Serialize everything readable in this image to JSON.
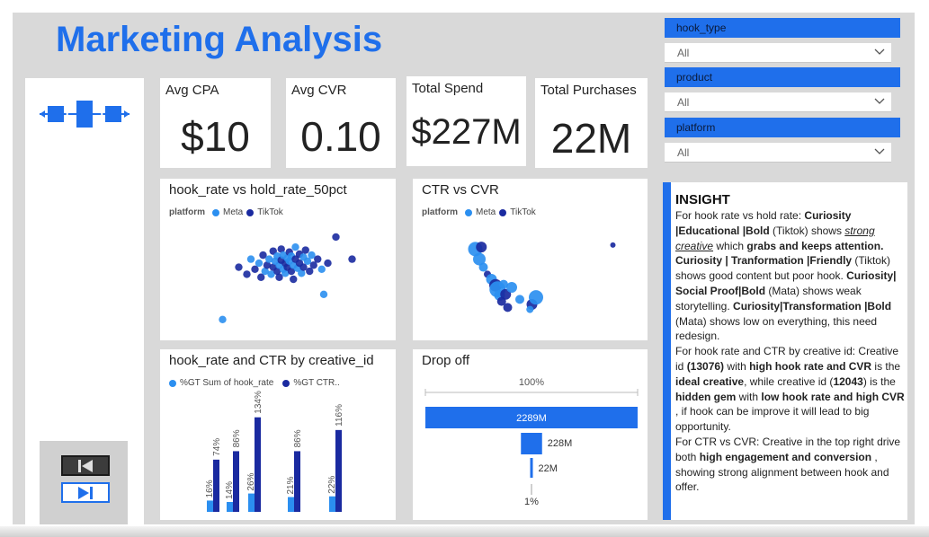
{
  "title": "Marketing Analysis",
  "colors": {
    "accent": "#1f6feb",
    "meta": "#2b8ff0",
    "tiktok": "#1a2aa0"
  },
  "kpis": {
    "avg_cpa": {
      "label": "Avg CPA",
      "value": "$10"
    },
    "avg_cvr": {
      "label": "Avg CVR",
      "value": "0.10"
    },
    "total_spend": {
      "label": "Total Spend",
      "value": "$227M"
    },
    "total_purchases": {
      "label": "Total Purchases",
      "value": "22M"
    }
  },
  "filters": {
    "hook_type": {
      "label": "hook_type",
      "value": "All"
    },
    "product": {
      "label": "product",
      "value": "All"
    },
    "platform": {
      "label": "platform",
      "value": "All"
    }
  },
  "icons": {
    "logo": "network-flow-icon",
    "prev": "skip-back-icon",
    "next": "skip-forward-icon",
    "dropdown": "chevron-down-icon"
  },
  "scatter1": {
    "title": "hook_rate vs hold_rate_50pct",
    "legend_title": "platform",
    "series": [
      "Meta",
      "TikTok"
    ]
  },
  "scatter2": {
    "title": "CTR vs CVR",
    "legend_title": "platform",
    "series": [
      "Meta",
      "TikTok"
    ]
  },
  "bar": {
    "title": "hook_rate and CTR by creative_id",
    "legend": [
      "%GT Sum of hook_rate",
      "%GT CTR.."
    ]
  },
  "dropoff": {
    "title": "Drop off",
    "top_label": "100%"
  },
  "insight": {
    "title": "INSIGHT",
    "p1": [
      {
        "t": "For hook rate vs hold rate:  "
      },
      {
        "t": "Curiosity |Educational |Bold",
        "b": true
      },
      {
        "t": " (Tiktok) shows "
      },
      {
        "t": "strong creative",
        "i": true,
        "u": true
      },
      {
        "t": " which "
      },
      {
        "t": "grabs and keeps attention.",
        "b": true
      },
      {
        "t": " "
      },
      {
        "t": "Curiosity | Tranformation |Friendly",
        "b": true
      },
      {
        "t": " (Tiktok) shows good content but poor hook. "
      },
      {
        "t": "Curiosity| Social Proof|Bold",
        "b": true
      },
      {
        "t": " (Mata) shows weak storytelling. "
      },
      {
        "t": "Curiosity|Transformation |Bold",
        "b": true
      },
      {
        "t": " (Mata) shows low on everything, this need redesign."
      }
    ],
    "p2": [
      {
        "t": " For hook rate and CTR by creative id: Creative id "
      },
      {
        "t": "(13076)",
        "b": true
      },
      {
        "t": " with "
      },
      {
        "t": "high hook rate and CVR",
        "b": true
      },
      {
        "t": " is the "
      },
      {
        "t": "ideal creative",
        "b": true
      },
      {
        "t": ", while creative id ("
      },
      {
        "t": "12043",
        "b": true
      },
      {
        "t": ") is the "
      },
      {
        "t": "hidden gem",
        "b": true
      },
      {
        "t": " with "
      },
      {
        "t": "low hook rate and high CVR",
        "b": true
      },
      {
        "t": " , if hook can be improve it will lead to big opportunity."
      }
    ],
    "p3": [
      {
        "t": " For CTR vs CVR: Creative in the top right drive both "
      },
      {
        "t": "high engagement and conversion",
        "b": true
      },
      {
        "t": " , showing strong alignment between hook and offer."
      }
    ]
  },
  "chart_data": [
    {
      "type": "scatter",
      "title": "hook_rate vs hold_rate_50pct",
      "legend": [
        "Meta",
        "TikTok"
      ],
      "points": [
        {
          "x": 0.3,
          "y": 0.62,
          "s": "TikTok"
        },
        {
          "x": 0.34,
          "y": 0.55,
          "s": "TikTok"
        },
        {
          "x": 0.36,
          "y": 0.7,
          "s": "Meta"
        },
        {
          "x": 0.38,
          "y": 0.6,
          "s": "TikTok"
        },
        {
          "x": 0.4,
          "y": 0.66,
          "s": "Meta"
        },
        {
          "x": 0.41,
          "y": 0.52,
          "s": "TikTok"
        },
        {
          "x": 0.42,
          "y": 0.74,
          "s": "TikTok"
        },
        {
          "x": 0.43,
          "y": 0.58,
          "s": "Meta"
        },
        {
          "x": 0.44,
          "y": 0.64,
          "s": "TikTok"
        },
        {
          "x": 0.45,
          "y": 0.7,
          "s": "Meta"
        },
        {
          "x": 0.46,
          "y": 0.55,
          "s": "Meta"
        },
        {
          "x": 0.47,
          "y": 0.62,
          "s": "TikTok"
        },
        {
          "x": 0.47,
          "y": 0.78,
          "s": "TikTok"
        },
        {
          "x": 0.48,
          "y": 0.68,
          "s": "Meta"
        },
        {
          "x": 0.49,
          "y": 0.58,
          "s": "TikTok"
        },
        {
          "x": 0.49,
          "y": 0.73,
          "s": "Meta"
        },
        {
          "x": 0.5,
          "y": 0.64,
          "s": "Meta"
        },
        {
          "x": 0.5,
          "y": 0.52,
          "s": "TikTok"
        },
        {
          "x": 0.51,
          "y": 0.8,
          "s": "TikTok"
        },
        {
          "x": 0.51,
          "y": 0.69,
          "s": "TikTok"
        },
        {
          "x": 0.52,
          "y": 0.6,
          "s": "Meta"
        },
        {
          "x": 0.52,
          "y": 0.74,
          "s": "Meta"
        },
        {
          "x": 0.53,
          "y": 0.66,
          "s": "TikTok"
        },
        {
          "x": 0.53,
          "y": 0.56,
          "s": "Meta"
        },
        {
          "x": 0.54,
          "y": 0.71,
          "s": "Meta"
        },
        {
          "x": 0.54,
          "y": 0.62,
          "s": "TikTok"
        },
        {
          "x": 0.55,
          "y": 0.77,
          "s": "TikTok"
        },
        {
          "x": 0.55,
          "y": 0.68,
          "s": "Meta"
        },
        {
          "x": 0.56,
          "y": 0.58,
          "s": "TikTok"
        },
        {
          "x": 0.56,
          "y": 0.73,
          "s": "Meta"
        },
        {
          "x": 0.57,
          "y": 0.64,
          "s": "Meta"
        },
        {
          "x": 0.57,
          "y": 0.5,
          "s": "TikTok"
        },
        {
          "x": 0.58,
          "y": 0.7,
          "s": "TikTok"
        },
        {
          "x": 0.58,
          "y": 0.82,
          "s": "Meta"
        },
        {
          "x": 0.59,
          "y": 0.61,
          "s": "Meta"
        },
        {
          "x": 0.6,
          "y": 0.75,
          "s": "TikTok"
        },
        {
          "x": 0.6,
          "y": 0.66,
          "s": "TikTok"
        },
        {
          "x": 0.61,
          "y": 0.56,
          "s": "Meta"
        },
        {
          "x": 0.62,
          "y": 0.72,
          "s": "Meta"
        },
        {
          "x": 0.62,
          "y": 0.62,
          "s": "TikTok"
        },
        {
          "x": 0.63,
          "y": 0.79,
          "s": "TikTok"
        },
        {
          "x": 0.64,
          "y": 0.68,
          "s": "Meta"
        },
        {
          "x": 0.65,
          "y": 0.58,
          "s": "TikTok"
        },
        {
          "x": 0.66,
          "y": 0.74,
          "s": "Meta"
        },
        {
          "x": 0.67,
          "y": 0.64,
          "s": "TikTok"
        },
        {
          "x": 0.69,
          "y": 0.7,
          "s": "TikTok"
        },
        {
          "x": 0.71,
          "y": 0.6,
          "s": "Meta"
        },
        {
          "x": 0.74,
          "y": 0.66,
          "s": "TikTok"
        },
        {
          "x": 0.78,
          "y": 0.92,
          "s": "TikTok"
        },
        {
          "x": 0.86,
          "y": 0.7,
          "s": "TikTok"
        },
        {
          "x": 0.72,
          "y": 0.35,
          "s": "Meta"
        },
        {
          "x": 0.22,
          "y": 0.1,
          "s": "Meta"
        }
      ]
    },
    {
      "type": "scatter",
      "title": "CTR vs CVR",
      "legend": [
        "Meta",
        "TikTok"
      ],
      "points": [
        {
          "x": 0.22,
          "y": 0.8,
          "s": "Meta",
          "r": 8
        },
        {
          "x": 0.25,
          "y": 0.82,
          "s": "TikTok",
          "r": 6
        },
        {
          "x": 0.24,
          "y": 0.7,
          "s": "Meta",
          "r": 7
        },
        {
          "x": 0.26,
          "y": 0.62,
          "s": "Meta",
          "r": 5
        },
        {
          "x": 0.28,
          "y": 0.55,
          "s": "TikTok",
          "r": 4
        },
        {
          "x": 0.3,
          "y": 0.5,
          "s": "Meta",
          "r": 6
        },
        {
          "x": 0.32,
          "y": 0.44,
          "s": "TikTok",
          "r": 7
        },
        {
          "x": 0.33,
          "y": 0.4,
          "s": "Meta",
          "r": 9
        },
        {
          "x": 0.34,
          "y": 0.34,
          "s": "Meta",
          "r": 6
        },
        {
          "x": 0.35,
          "y": 0.28,
          "s": "TikTok",
          "r": 5
        },
        {
          "x": 0.36,
          "y": 0.45,
          "s": "Meta",
          "r": 5
        },
        {
          "x": 0.37,
          "y": 0.35,
          "s": "TikTok",
          "r": 6
        },
        {
          "x": 0.38,
          "y": 0.22,
          "s": "TikTok",
          "r": 5
        },
        {
          "x": 0.4,
          "y": 0.42,
          "s": "Meta",
          "r": 6
        },
        {
          "x": 0.44,
          "y": 0.3,
          "s": "Meta",
          "r": 5
        },
        {
          "x": 0.5,
          "y": 0.25,
          "s": "TikTok",
          "r": 6
        },
        {
          "x": 0.52,
          "y": 0.32,
          "s": "Meta",
          "r": 8
        },
        {
          "x": 0.49,
          "y": 0.2,
          "s": "Meta",
          "r": 4
        },
        {
          "x": 0.9,
          "y": 0.84,
          "s": "TikTok",
          "r": 3
        }
      ]
    },
    {
      "type": "bar",
      "title": "hook_rate and CTR by creative_id",
      "series": [
        {
          "name": "%GT Sum of hook_rate",
          "values": [
            16,
            14,
            26,
            21,
            22
          ]
        },
        {
          "name": "%GT CTR..",
          "values": [
            74,
            86,
            134,
            86,
            116
          ]
        }
      ],
      "labels_hook": [
        "16%",
        "14%",
        "26%",
        "21%",
        "22%"
      ],
      "labels_ctr": [
        "74%",
        "86%",
        "134%",
        "86%",
        "116%"
      ]
    },
    {
      "type": "bar",
      "title": "Drop off",
      "stages": [
        {
          "label": "2289M",
          "value": 2289
        },
        {
          "label": "228M",
          "value": 228
        },
        {
          "label": "22M",
          "value": 22
        },
        {
          "label": "1%",
          "value": 1
        }
      ]
    }
  ]
}
